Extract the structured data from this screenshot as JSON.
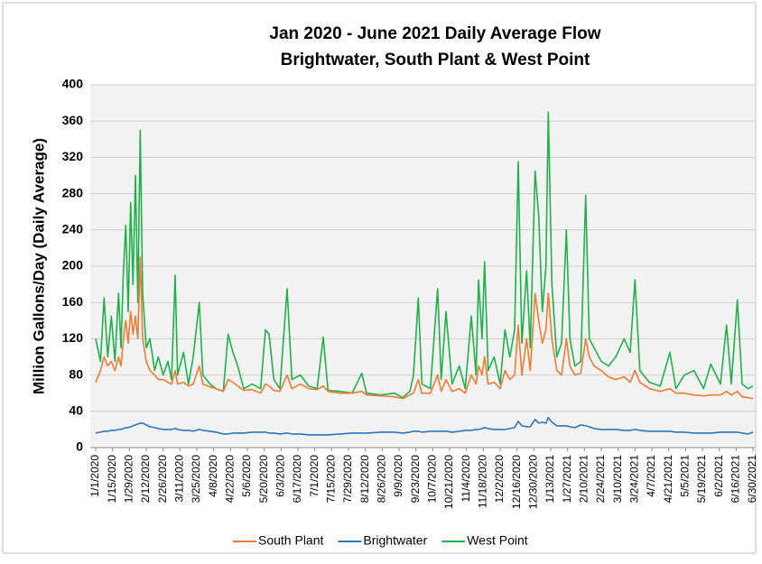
{
  "chart_data": {
    "type": "line",
    "title": "Jan 2020 - June 2021 Daily Average Flow",
    "subtitle": "Brightwater, South Plant & West Point",
    "y_label": "Million Gallons/Day (Daily Average)",
    "x": [
      "1/1/2020",
      "1/5/2020",
      "1/8/2020",
      "1/11/2020",
      "1/14/2020",
      "1/17/2020",
      "1/20/2020",
      "1/22/2020",
      "1/24/2020",
      "1/26/2020",
      "1/28/2020",
      "1/30/2020",
      "2/1/2020",
      "2/3/2020",
      "2/5/2020",
      "2/7/2020",
      "2/9/2020",
      "2/12/2020",
      "2/15/2020",
      "2/19/2020",
      "2/22/2020",
      "2/26/2020",
      "3/1/2020",
      "3/4/2020",
      "3/7/2020",
      "3/9/2020",
      "3/14/2020",
      "3/18/2020",
      "3/22/2020",
      "3/27/2020",
      "3/30/2020",
      "4/5/2020",
      "4/10/2020",
      "4/16/2020",
      "4/20/2020",
      "4/24/2020",
      "4/28/2020",
      "5/3/2020",
      "5/10/2020",
      "5/17/2020",
      "5/21/2020",
      "5/24/2020",
      "5/28/2020",
      "6/2/2020",
      "6/8/2020",
      "6/12/2020",
      "6/19/2020",
      "6/26/2020",
      "7/3/2020",
      "7/8/2020",
      "7/12/2020",
      "7/22/2020",
      "8/1/2020",
      "8/9/2020",
      "8/13/2020",
      "8/25/2020",
      "9/5/2020",
      "9/12/2020",
      "9/18/2020",
      "9/21/2020",
      "9/25/2020",
      "9/28/2020",
      "10/5/2020",
      "10/11/2020",
      "10/14/2020",
      "10/18/2020",
      "10/23/2020",
      "10/29/2020",
      "11/3/2020",
      "11/8/2020",
      "11/12/2020",
      "11/14/2020",
      "11/17/2020",
      "11/19/2020",
      "11/22/2020",
      "11/27/2020",
      "12/2/2020",
      "12/6/2020",
      "12/10/2020",
      "12/14/2020",
      "12/17/2020",
      "12/20/2020",
      "12/24/2020",
      "12/27/2020",
      "12/31/2020",
      "1/3/2021",
      "1/6/2021",
      "1/9/2021",
      "1/11/2021",
      "1/14/2021",
      "1/18/2021",
      "1/22/2021",
      "1/26/2021",
      "1/29/2021",
      "2/2/2021",
      "2/7/2021",
      "2/11/2021",
      "2/14/2021",
      "2/18/2021",
      "2/24/2021",
      "3/2/2021",
      "3/8/2021",
      "3/15/2021",
      "3/20/2021",
      "3/24/2021",
      "3/28/2021",
      "4/5/2021",
      "4/14/2021",
      "4/22/2021",
      "4/27/2021",
      "5/4/2021",
      "5/12/2021",
      "5/20/2021",
      "5/26/2021",
      "6/3/2021",
      "6/8/2021",
      "6/12/2021",
      "6/17/2021",
      "6/21/2021",
      "6/26/2021",
      "6/30/2021"
    ],
    "series": [
      {
        "name": "South Plant",
        "color": "#ed7d31",
        "values": [
          72,
          85,
          100,
          90,
          95,
          85,
          100,
          90,
          120,
          140,
          115,
          150,
          125,
          145,
          120,
          210,
          120,
          95,
          85,
          80,
          75,
          75,
          72,
          70,
          85,
          70,
          72,
          68,
          70,
          90,
          70,
          67,
          65,
          62,
          75,
          72,
          68,
          63,
          64,
          60,
          70,
          68,
          63,
          62,
          80,
          65,
          70,
          65,
          64,
          68,
          62,
          60,
          60,
          62,
          58,
          57,
          56,
          54,
          58,
          60,
          75,
          60,
          60,
          80,
          62,
          75,
          62,
          65,
          60,
          80,
          70,
          90,
          80,
          100,
          70,
          72,
          65,
          85,
          75,
          80,
          135,
          80,
          120,
          85,
          170,
          140,
          115,
          130,
          170,
          120,
          85,
          80,
          120,
          90,
          80,
          82,
          120,
          100,
          90,
          85,
          78,
          75,
          78,
          72,
          85,
          72,
          65,
          62,
          65,
          60,
          60,
          58,
          57,
          58,
          58,
          62,
          58,
          62,
          56,
          55,
          54
        ]
      },
      {
        "name": "Brightwater",
        "color": "#2e75b6",
        "values": [
          16,
          17,
          18,
          18,
          19,
          19,
          20,
          20,
          21,
          22,
          22,
          23,
          24,
          25,
          26,
          27,
          27,
          25,
          23,
          22,
          21,
          20,
          20,
          20,
          21,
          20,
          19,
          19,
          18,
          20,
          19,
          18,
          17,
          15,
          15,
          16,
          16,
          16,
          17,
          17,
          17,
          16,
          16,
          15,
          16,
          15,
          15,
          14,
          14,
          14,
          14,
          15,
          16,
          16,
          16,
          17,
          17,
          16,
          17,
          18,
          18,
          17,
          18,
          18,
          18,
          18,
          17,
          18,
          19,
          19,
          20,
          20,
          21,
          22,
          21,
          20,
          20,
          20,
          21,
          22,
          29,
          24,
          23,
          23,
          31,
          27,
          28,
          27,
          33,
          28,
          24,
          24,
          24,
          23,
          22,
          25,
          24,
          23,
          21,
          20,
          20,
          20,
          19,
          19,
          20,
          19,
          18,
          18,
          18,
          17,
          17,
          16,
          16,
          16,
          17,
          17,
          17,
          17,
          16,
          15,
          17
        ]
      },
      {
        "name": "West Point",
        "color": "#21b04b",
        "values": [
          120,
          95,
          165,
          100,
          145,
          95,
          170,
          110,
          195,
          245,
          150,
          270,
          180,
          300,
          160,
          350,
          170,
          110,
          120,
          85,
          100,
          80,
          95,
          75,
          190,
          80,
          105,
          70,
          100,
          160,
          80,
          70,
          65,
          62,
          125,
          105,
          90,
          65,
          70,
          65,
          130,
          125,
          75,
          65,
          175,
          75,
          80,
          68,
          65,
          122,
          63,
          62,
          60,
          82,
          60,
          58,
          60,
          55,
          62,
          80,
          165,
          70,
          65,
          175,
          75,
          150,
          70,
          90,
          65,
          145,
          80,
          185,
          120,
          205,
          85,
          100,
          70,
          130,
          100,
          130,
          315,
          115,
          195,
          110,
          305,
          255,
          150,
          200,
          370,
          180,
          100,
          115,
          240,
          120,
          90,
          95,
          278,
          120,
          110,
          95,
          90,
          100,
          120,
          105,
          185,
          85,
          72,
          68,
          105,
          65,
          80,
          85,
          65,
          92,
          70,
          135,
          70,
          163,
          70,
          65,
          68
        ]
      }
    ],
    "xlim": [
      "1/1/2020",
      "6/30/2021"
    ],
    "xticks": [
      "1/1/2020",
      "1/15/2020",
      "1/29/2020",
      "2/12/2020",
      "2/26/2020",
      "3/11/2020",
      "3/25/2020",
      "4/8/2020",
      "4/22/2020",
      "5/6/2020",
      "5/20/2020",
      "6/3/2020",
      "6/17/2020",
      "7/1/2020",
      "7/15/2020",
      "7/29/2020",
      "8/12/2020",
      "8/26/2020",
      "9/9/2020",
      "9/23/2020",
      "10/7/2020",
      "10/21/2020",
      "11/4/2020",
      "11/18/2020",
      "12/2/2020",
      "12/16/2020",
      "12/30/2020",
      "1/13/2021",
      "1/27/2021",
      "2/10/2021",
      "2/24/2021",
      "3/10/2021",
      "3/24/2021",
      "4/7/2021",
      "4/21/2021",
      "5/5/2021",
      "5/19/2021",
      "6/2/2021",
      "6/16/2021",
      "6/30/2021"
    ],
    "ylim": [
      0,
      400
    ],
    "yticks": [
      0,
      40,
      80,
      120,
      160,
      200,
      240,
      280,
      320,
      360,
      400
    ],
    "grid": true,
    "legend": "bottom"
  }
}
